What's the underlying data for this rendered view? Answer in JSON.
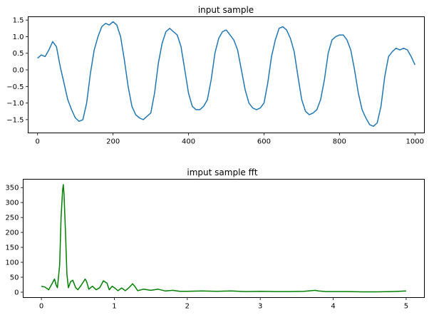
{
  "chart_data": [
    {
      "type": "line",
      "title": "input sample",
      "xlabel": "",
      "ylabel": "",
      "xlim": [
        -25,
        1025
      ],
      "ylim": [
        -1.9,
        1.6
      ],
      "xticks": [
        0,
        200,
        400,
        600,
        800,
        1000
      ],
      "yticks": [
        -1.5,
        -1.0,
        -0.5,
        0.0,
        0.5,
        1.0,
        1.5
      ],
      "xtick_labels": [
        "0",
        "200",
        "400",
        "600",
        "800",
        "1000"
      ],
      "ytick_labels": [
        "−1.5",
        "−1.0",
        "−0.5",
        "0.0",
        "0.5",
        "1.0",
        "1.5"
      ],
      "color": "#1f77b4",
      "grid": false,
      "series": [
        {
          "x": [
            0,
            10,
            20,
            30,
            40,
            50,
            60,
            70,
            80,
            90,
            100,
            110,
            120,
            130,
            140,
            150,
            160,
            170,
            180,
            190,
            200,
            210,
            220,
            230,
            240,
            250,
            260,
            270,
            280,
            290,
            300,
            310,
            320,
            330,
            340,
            350,
            360,
            370,
            380,
            390,
            400,
            410,
            420,
            430,
            440,
            450,
            460,
            470,
            480,
            490,
            500,
            510,
            520,
            530,
            540,
            550,
            560,
            570,
            580,
            590,
            600,
            610,
            620,
            630,
            640,
            650,
            660,
            670,
            680,
            690,
            700,
            710,
            720,
            730,
            740,
            750,
            760,
            770,
            780,
            790,
            800,
            810,
            820,
            830,
            840,
            850,
            860,
            870,
            880,
            890,
            900,
            910,
            920,
            930,
            940,
            950,
            960,
            970,
            980,
            990,
            1000
          ],
          "y": [
            0.35,
            0.45,
            0.4,
            0.6,
            0.85,
            0.7,
            0.1,
            -0.4,
            -0.9,
            -1.2,
            -1.45,
            -1.55,
            -1.5,
            -1.0,
            -0.1,
            0.6,
            1.0,
            1.3,
            1.4,
            1.35,
            1.45,
            1.35,
            1.0,
            0.3,
            -0.5,
            -1.1,
            -1.35,
            -1.45,
            -1.5,
            -1.4,
            -1.3,
            -0.7,
            0.2,
            0.8,
            1.15,
            1.25,
            1.15,
            1.05,
            0.7,
            0.0,
            -0.7,
            -1.1,
            -1.2,
            -1.2,
            -1.1,
            -0.9,
            -0.3,
            0.5,
            0.95,
            1.15,
            1.2,
            1.05,
            0.9,
            0.6,
            0.0,
            -0.6,
            -1.0,
            -1.15,
            -1.2,
            -1.15,
            -1.0,
            -0.4,
            0.4,
            0.9,
            1.25,
            1.3,
            1.2,
            0.95,
            0.55,
            -0.2,
            -0.9,
            -1.25,
            -1.35,
            -1.3,
            -1.2,
            -0.9,
            -0.3,
            0.5,
            0.9,
            1.0,
            1.05,
            1.05,
            0.9,
            0.6,
            0.0,
            -0.7,
            -1.2,
            -1.45,
            -1.65,
            -1.7,
            -1.6,
            -1.1,
            -0.2,
            0.4,
            0.55,
            0.65,
            0.6,
            0.65,
            0.6,
            0.4,
            0.15
          ]
        }
      ]
    },
    {
      "type": "line",
      "title": "imput sample fft",
      "xlabel": "",
      "ylabel": "",
      "xlim": [
        -0.25,
        5.25
      ],
      "ylim": [
        -18,
        378
      ],
      "xticks": [
        0,
        1,
        2,
        3,
        4,
        5
      ],
      "yticks": [
        0,
        50,
        100,
        150,
        200,
        250,
        300,
        350
      ],
      "xtick_labels": [
        "0",
        "1",
        "2",
        "3",
        "4",
        "5"
      ],
      "ytick_labels": [
        "0",
        "50",
        "100",
        "150",
        "200",
        "250",
        "300",
        "350"
      ],
      "color": "#008000",
      "grid": false,
      "series": [
        {
          "x": [
            0.0,
            0.05,
            0.1,
            0.15,
            0.18,
            0.2,
            0.22,
            0.25,
            0.27,
            0.29,
            0.3,
            0.31,
            0.33,
            0.35,
            0.37,
            0.4,
            0.43,
            0.47,
            0.5,
            0.55,
            0.6,
            0.62,
            0.65,
            0.7,
            0.75,
            0.8,
            0.85,
            0.9,
            0.93,
            0.97,
            1.0,
            1.05,
            1.1,
            1.15,
            1.2,
            1.25,
            1.28,
            1.32,
            1.4,
            1.5,
            1.6,
            1.7,
            1.8,
            1.9,
            2.0,
            2.2,
            2.4,
            2.6,
            2.8,
            3.0,
            3.2,
            3.4,
            3.6,
            3.7,
            3.75,
            3.8,
            3.9,
            4.0,
            4.2,
            4.4,
            4.6,
            4.8,
            4.9,
            5.0
          ],
          "y": [
            20,
            17,
            8,
            30,
            44,
            25,
            15,
            90,
            250,
            340,
            360,
            330,
            200,
            60,
            15,
            35,
            40,
            15,
            8,
            25,
            44,
            35,
            10,
            20,
            8,
            15,
            38,
            30,
            8,
            20,
            15,
            5,
            14,
            5,
            15,
            28,
            20,
            5,
            10,
            6,
            10,
            4,
            6,
            3,
            3,
            4,
            3,
            4,
            2,
            3,
            2,
            2,
            3,
            5,
            6,
            4,
            2,
            2,
            2,
            1,
            1,
            2,
            3,
            4
          ]
        }
      ]
    }
  ]
}
